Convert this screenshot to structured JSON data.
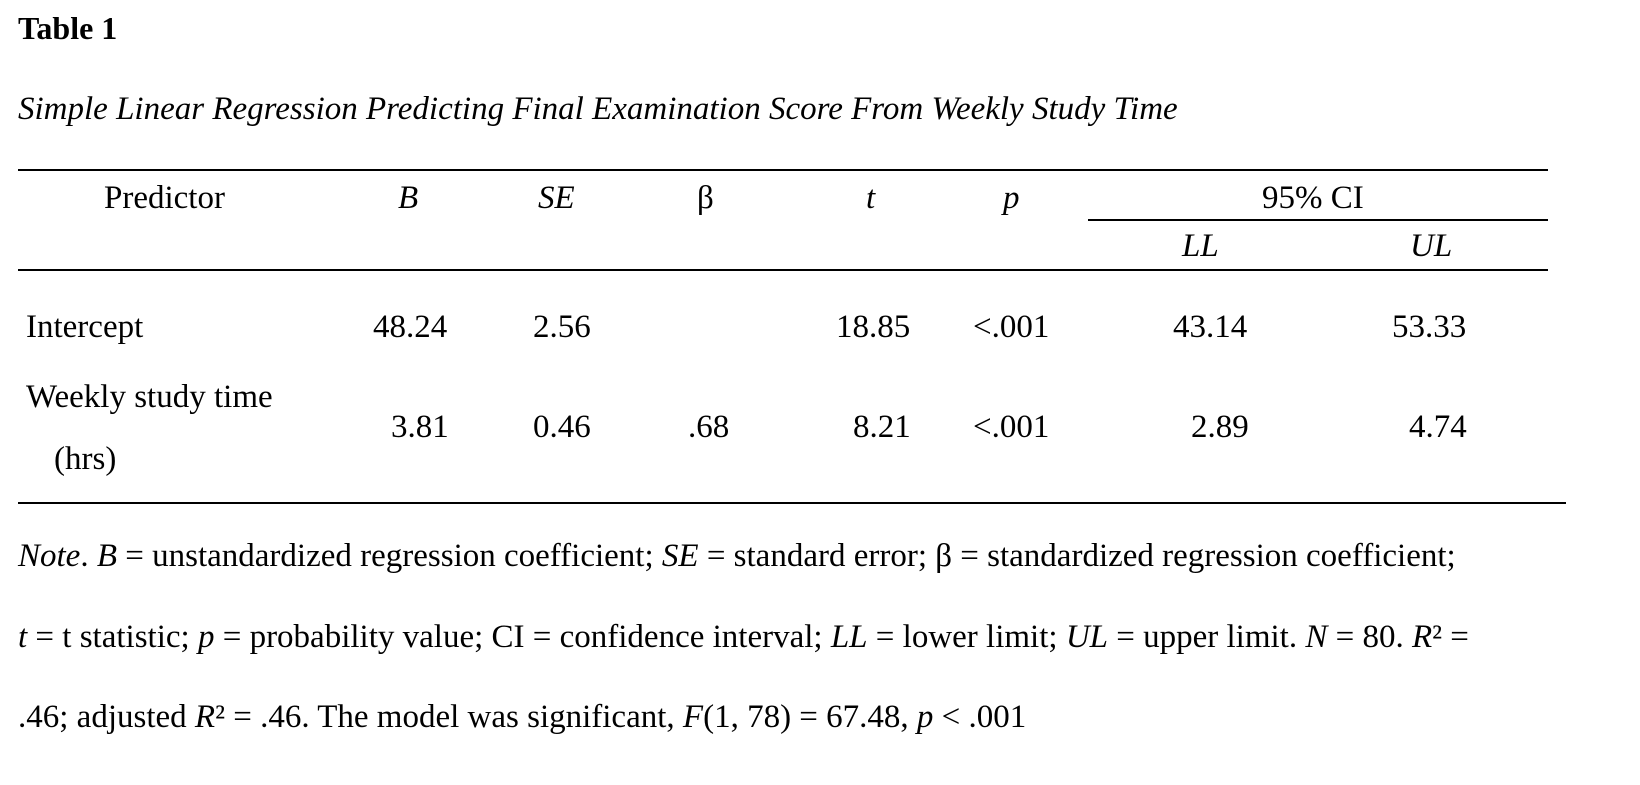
{
  "table_number": "Table 1",
  "title": "Simple Linear Regression Predicting Final Examination Score From Weekly Study Time",
  "headers": {
    "predictor": "Predictor",
    "b": "B",
    "se": "SE",
    "beta": "β",
    "t": "t",
    "p": "p",
    "ci": "95% CI",
    "ll": "LL",
    "ul": "UL"
  },
  "rows": [
    {
      "predictor": "Intercept",
      "predictor_line2": "",
      "b": "48.24",
      "se": "2.56",
      "beta": "",
      "t": "18.85",
      "p": "<.001",
      "ll": "43.14",
      "ul": "53.33"
    },
    {
      "predictor": "Weekly study time",
      "predictor_line2": "(hrs)",
      "b": "3.81",
      "se": "0.46",
      "beta": ".68",
      "t": "8.21",
      "p": "<.001",
      "ll": "2.89",
      "ul": "4.74"
    }
  ],
  "note": {
    "label": "Note",
    "defs": {
      "b_sym": "B",
      "b_def": " = unstandardized regression coefficient; ",
      "se_sym": "SE",
      "se_def": " = standard error; β = standardized regression coefficient;",
      "t_sym": "t",
      "t_def": " = t statistic; ",
      "p_sym": "p",
      "p_def": " = probability value; CI = confidence interval; ",
      "ll_sym": "LL",
      "ll_def": " = lower limit; ",
      "ul_sym": "UL",
      "ul_def": " = upper limit. ",
      "n_sym": "N",
      "n_def": " = 80. ",
      "r2_sym": "R",
      "r2_def": "² =",
      "line3_a": ".46; adjusted ",
      "adj_sym": "R",
      "adj_def": "² = .46. The model was significant, ",
      "f_sym": "F",
      "f_def": "(1, 78) = 67.48, ",
      "p2_sym": "p",
      "p2_def": " < .001"
    }
  }
}
